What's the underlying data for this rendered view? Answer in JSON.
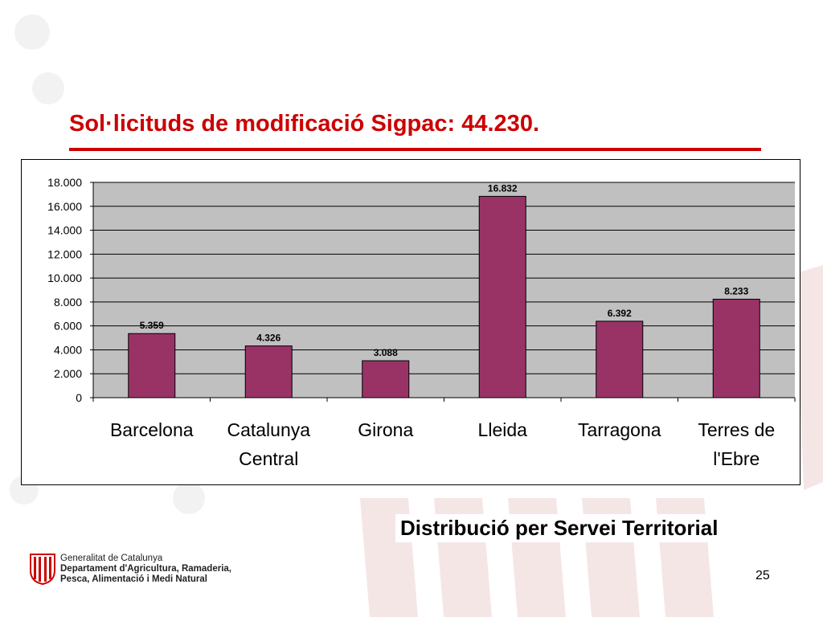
{
  "slide": {
    "title": "Sol·licituds de modificació Sigpac: 44.230.",
    "caption": "Distribució per Servei Territorial",
    "page_number": "25"
  },
  "footer": {
    "org_line_1": "Generalitat de Catalunya",
    "org_line_2": "Departament d'Agricultura, Ramaderia,",
    "org_line_3": "Pesca, Alimentació i Medi Natural"
  },
  "colors": {
    "title": "#cc0000",
    "bar": "#993366",
    "plot_background": "#c0c0c0"
  },
  "chart_data": {
    "type": "bar",
    "categories": [
      [
        "Barcelona"
      ],
      [
        "Catalunya",
        "Central"
      ],
      [
        "Girona"
      ],
      [
        "Lleida"
      ],
      [
        "Tarragona"
      ],
      [
        "Terres de",
        "l'Ebre"
      ]
    ],
    "values": [
      5359,
      4326,
      3088,
      16832,
      6392,
      8233
    ],
    "value_labels": [
      "5.359",
      "4.326",
      "3.088",
      "16.832",
      "6.392",
      "8.233"
    ],
    "yticks": [
      "0",
      "2.000",
      "4.000",
      "6.000",
      "8.000",
      "10.000",
      "12.000",
      "14.000",
      "16.000",
      "18.000"
    ],
    "ylim": [
      0,
      18000
    ],
    "ystep": 2000,
    "grid": true,
    "legend": "none"
  }
}
